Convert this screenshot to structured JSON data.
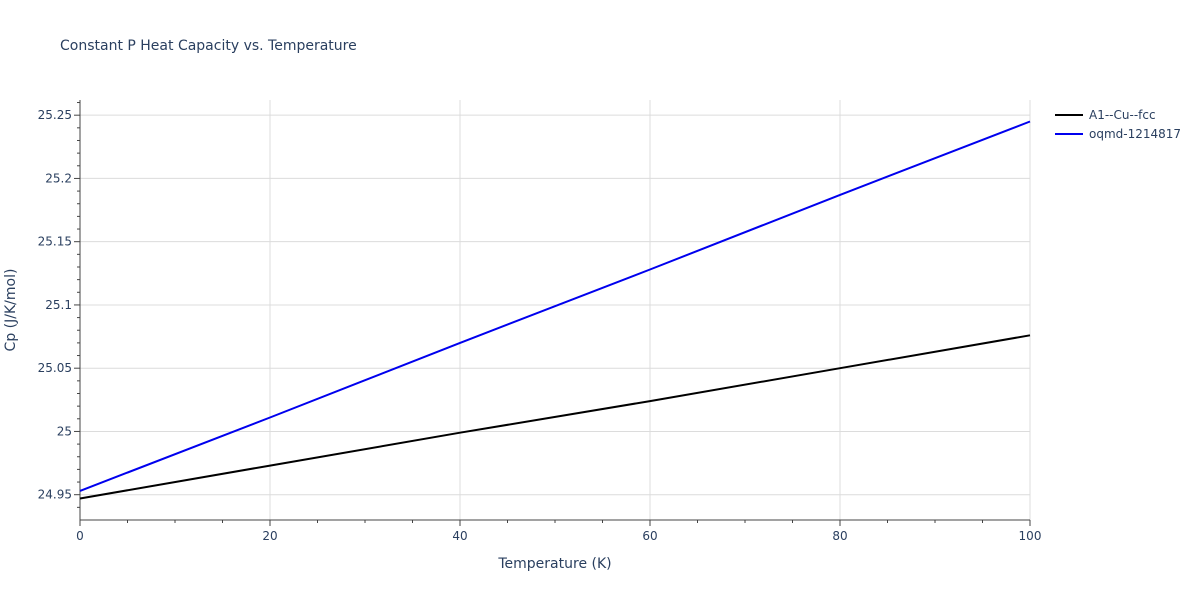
{
  "chart_data": {
    "type": "line",
    "title": "Constant P Heat Capacity vs. Temperature",
    "xlabel": "Temperature (K)",
    "ylabel": "Cp (J/K/mol)",
    "xlim": [
      0,
      100
    ],
    "ylim": [
      24.93,
      25.262
    ],
    "x_ticks": [
      0,
      20,
      40,
      60,
      80,
      100
    ],
    "x_tick_labels": [
      "0",
      "20",
      "40",
      "60",
      "80",
      "100"
    ],
    "y_ticks": [
      24.95,
      25.0,
      25.05,
      25.1,
      25.15,
      25.2,
      25.25
    ],
    "y_tick_labels": [
      "24.95",
      "25",
      "25.05",
      "25.1",
      "25.15",
      "25.2",
      "25.25"
    ],
    "grid": true,
    "legend_position": "top-right",
    "series": [
      {
        "name": "A1--Cu--fcc",
        "color": "#000000",
        "x": [
          0,
          20,
          40,
          60,
          80,
          100
        ],
        "y": [
          24.947,
          24.973,
          24.999,
          25.024,
          25.05,
          25.076
        ]
      },
      {
        "name": "oqmd-1214817",
        "color": "#0000ee",
        "x": [
          0,
          20,
          40,
          60,
          80,
          100
        ],
        "y": [
          24.953,
          25.011,
          25.07,
          25.128,
          25.187,
          25.245
        ]
      }
    ]
  }
}
